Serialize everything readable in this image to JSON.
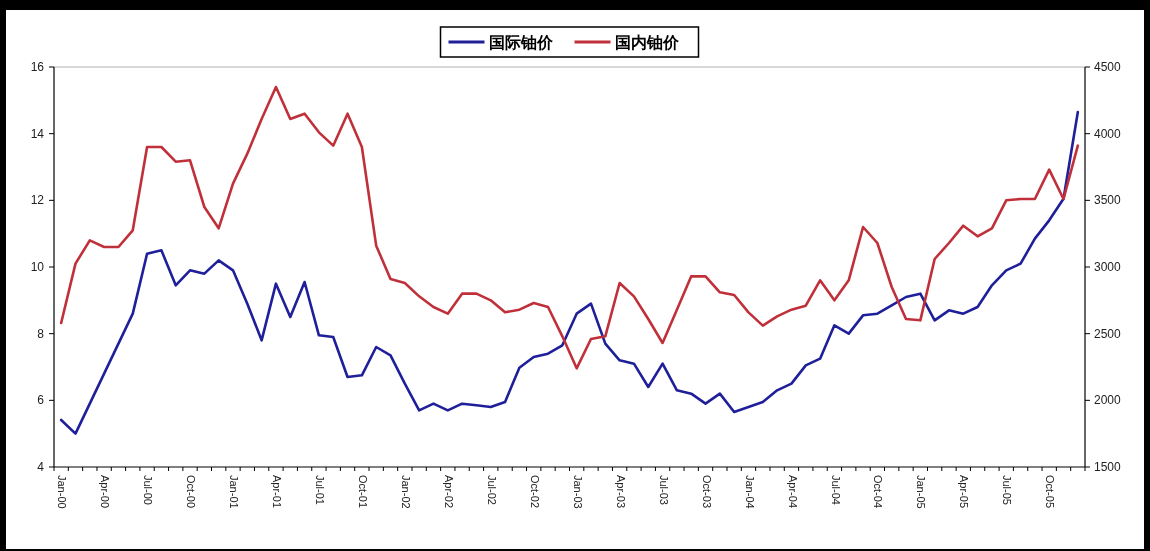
{
  "chart_data": {
    "type": "line",
    "categories": [
      "Jan-00",
      null,
      null,
      "Apr-00",
      null,
      null,
      "Jul-00",
      null,
      null,
      "Oct-00",
      null,
      null,
      "Jan-01",
      null,
      null,
      "Apr-01",
      null,
      null,
      "Jul-01",
      null,
      null,
      "Oct-01",
      null,
      null,
      "Jan-02",
      null,
      null,
      "Apr-02",
      null,
      null,
      "Jul-02",
      null,
      null,
      "Oct-02",
      null,
      null,
      "Jan-03",
      null,
      null,
      "Apr-03",
      null,
      null,
      "Jul-03",
      null,
      null,
      "Oct-03",
      null,
      null,
      "Jan-04",
      null,
      null,
      "Apr-04",
      null,
      null,
      "Jul-04",
      null,
      null,
      "Oct-04",
      null,
      null,
      "Jan-05",
      null,
      null,
      "Apr-05",
      null,
      null,
      "Jul-05",
      null,
      null,
      "Oct-05",
      null,
      null
    ],
    "series": [
      {
        "name": "国际铀价",
        "color": "#1f1f9a",
        "values": [
          5.41,
          5.0,
          5.9,
          6.8,
          7.7,
          8.6,
          10.4,
          10.5,
          9.45,
          9.9,
          9.8,
          10.2,
          9.9,
          8.9,
          7.8,
          9.5,
          8.5,
          9.55,
          7.95,
          7.9,
          6.7,
          6.75,
          7.6,
          7.35,
          6.5,
          5.7,
          5.9,
          5.7,
          5.9,
          5.85,
          5.8,
          5.95,
          6.98,
          7.3,
          7.4,
          7.65,
          8.6,
          8.9,
          7.7,
          7.2,
          7.1,
          6.4,
          7.1,
          6.3,
          6.2,
          5.9,
          6.2,
          5.65,
          5.8,
          5.95,
          6.3,
          6.5,
          7.05,
          7.25,
          8.25,
          8.0,
          8.55,
          8.6,
          8.85,
          9.1,
          9.2,
          8.4,
          8.7,
          8.6,
          8.8,
          9.45,
          9.9,
          10.1,
          10.85,
          11.4,
          12.05,
          14.65
        ]
      },
      {
        "name": "国内铀价",
        "color": "#c0303a",
        "axis": "y2",
        "values": [
          2580,
          3025,
          3200,
          3150,
          3150,
          3275,
          3900,
          3900,
          3790,
          3800,
          3450,
          3290,
          3625,
          3850,
          4110,
          4350,
          4110,
          4150,
          4010,
          3910,
          4150,
          3900,
          3160,
          2910,
          2880,
          2780,
          2700,
          2650,
          2800,
          2800,
          2750,
          2660,
          2680,
          2730,
          2700,
          2480,
          2240,
          2460,
          2480,
          2880,
          2780,
          2610,
          2430,
          2680,
          2930,
          2930,
          2810,
          2790,
          2660,
          2560,
          2630,
          2680,
          2710,
          2900,
          2750,
          2900,
          3300,
          3180,
          2850,
          2610,
          2600,
          3060,
          3180,
          3310,
          3230,
          3290,
          3500,
          3510,
          3510,
          3730,
          3510,
          3910
        ]
      }
    ],
    "ylim": [
      4,
      16
    ],
    "yticks": [
      4,
      6,
      8,
      10,
      12,
      14,
      16
    ],
    "y2lim": [
      1500,
      4500
    ],
    "y2ticks": [
      1500,
      2000,
      2500,
      3000,
      3500,
      4000,
      4500
    ],
    "legend": "top"
  }
}
